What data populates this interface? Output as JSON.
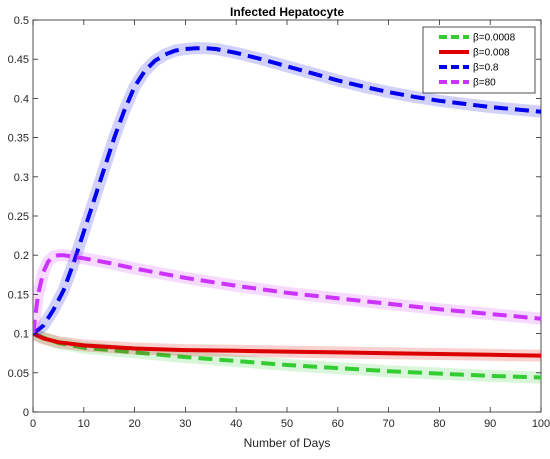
{
  "chart_data": {
    "type": "line",
    "title": "Infected Hepatocyte",
    "xlabel": "Number of Days",
    "ylabel": "",
    "xlim": [
      0,
      100
    ],
    "ylim": [
      0,
      0.5
    ],
    "xticks": [
      0,
      10,
      20,
      30,
      40,
      50,
      60,
      70,
      80,
      90,
      100
    ],
    "yticks": [
      0,
      0.05,
      0.1,
      0.15,
      0.2,
      0.25,
      0.3,
      0.35,
      0.4,
      0.45,
      0.5
    ],
    "grid": false,
    "legend_position": "top-right",
    "series": [
      {
        "name": "β=0.0008",
        "color": "#33cc33",
        "x": [
          0,
          2,
          5,
          10,
          20,
          30,
          40,
          50,
          60,
          70,
          80,
          90,
          100
        ],
        "values": [
          0.1,
          0.095,
          0.088,
          0.082,
          0.076,
          0.07,
          0.065,
          0.06,
          0.056,
          0.052,
          0.049,
          0.046,
          0.044
        ]
      },
      {
        "name": "β=0.008",
        "color": "#dd0000",
        "x": [
          0,
          2,
          5,
          10,
          20,
          30,
          40,
          50,
          60,
          70,
          80,
          90,
          100
        ],
        "values": [
          0.1,
          0.094,
          0.089,
          0.085,
          0.081,
          0.079,
          0.078,
          0.077,
          0.076,
          0.075,
          0.074,
          0.073,
          0.072
        ]
      },
      {
        "name": "β=0.8",
        "color": "#0000ee",
        "x": [
          0,
          2,
          4,
          6,
          8,
          10,
          12,
          14,
          16,
          18,
          20,
          22,
          24,
          26,
          28,
          30,
          32,
          34,
          36,
          40,
          45,
          50,
          55,
          60,
          65,
          70,
          75,
          80,
          85,
          90,
          95,
          100
        ],
        "values": [
          0.1,
          0.11,
          0.13,
          0.155,
          0.19,
          0.23,
          0.27,
          0.31,
          0.35,
          0.385,
          0.415,
          0.435,
          0.448,
          0.456,
          0.461,
          0.463,
          0.464,
          0.464,
          0.463,
          0.458,
          0.45,
          0.441,
          0.432,
          0.423,
          0.415,
          0.408,
          0.402,
          0.397,
          0.393,
          0.389,
          0.386,
          0.383
        ]
      },
      {
        "name": "β=80",
        "color": "#cc33ff",
        "x": [
          0,
          1,
          2,
          3,
          4,
          5,
          6,
          8,
          10,
          15,
          20,
          30,
          40,
          50,
          60,
          70,
          80,
          90,
          100
        ],
        "values": [
          0.1,
          0.15,
          0.178,
          0.192,
          0.198,
          0.2,
          0.2,
          0.198,
          0.196,
          0.19,
          0.183,
          0.171,
          0.161,
          0.152,
          0.145,
          0.138,
          0.131,
          0.125,
          0.119
        ]
      }
    ]
  }
}
